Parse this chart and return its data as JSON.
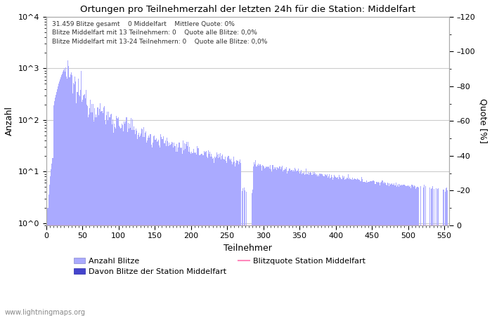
{
  "title": "Ortungen pro Teilnehmerzahl der letzten 24h für die Station: Middelfart",
  "xlabel": "Teilnehmer",
  "ylabel_left": "Anzahl",
  "ylabel_right": "Quote [%]",
  "annotation_lines": [
    "31.459 Blitze gesamt    0 Middelfart    Mittlere Quote: 0%",
    "Blitze Middelfart mit 13 Teilnehmern: 0    Quote alle Blitze: 0,0%",
    "Blitze Middelfart mit 13-24 Teilnehmern: 0    Quote alle Blitze: 0,0%"
  ],
  "legend_entries": [
    {
      "label": "Anzahl Blitze",
      "color": "#aaaaff"
    },
    {
      "label": "Davon Blitze der Station Middelfart",
      "color": "#4444cc"
    },
    {
      "label": "Blitzquote Station Middelfart",
      "color": "#ff88bb"
    }
  ],
  "bar_color": "#aaaaff",
  "station_bar_color": "#4444cc",
  "quote_line_color": "#ff88bb",
  "xlim": [
    0,
    557
  ],
  "ylim_right": [
    0,
    120
  ],
  "yticks_right": [
    0,
    20,
    40,
    60,
    80,
    100,
    120
  ],
  "xticks": [
    0,
    50,
    100,
    150,
    200,
    250,
    300,
    350,
    400,
    450,
    500,
    550
  ],
  "watermark": "www.lightningmaps.org",
  "background_color": "#ffffff",
  "grid_color": "#cccccc"
}
